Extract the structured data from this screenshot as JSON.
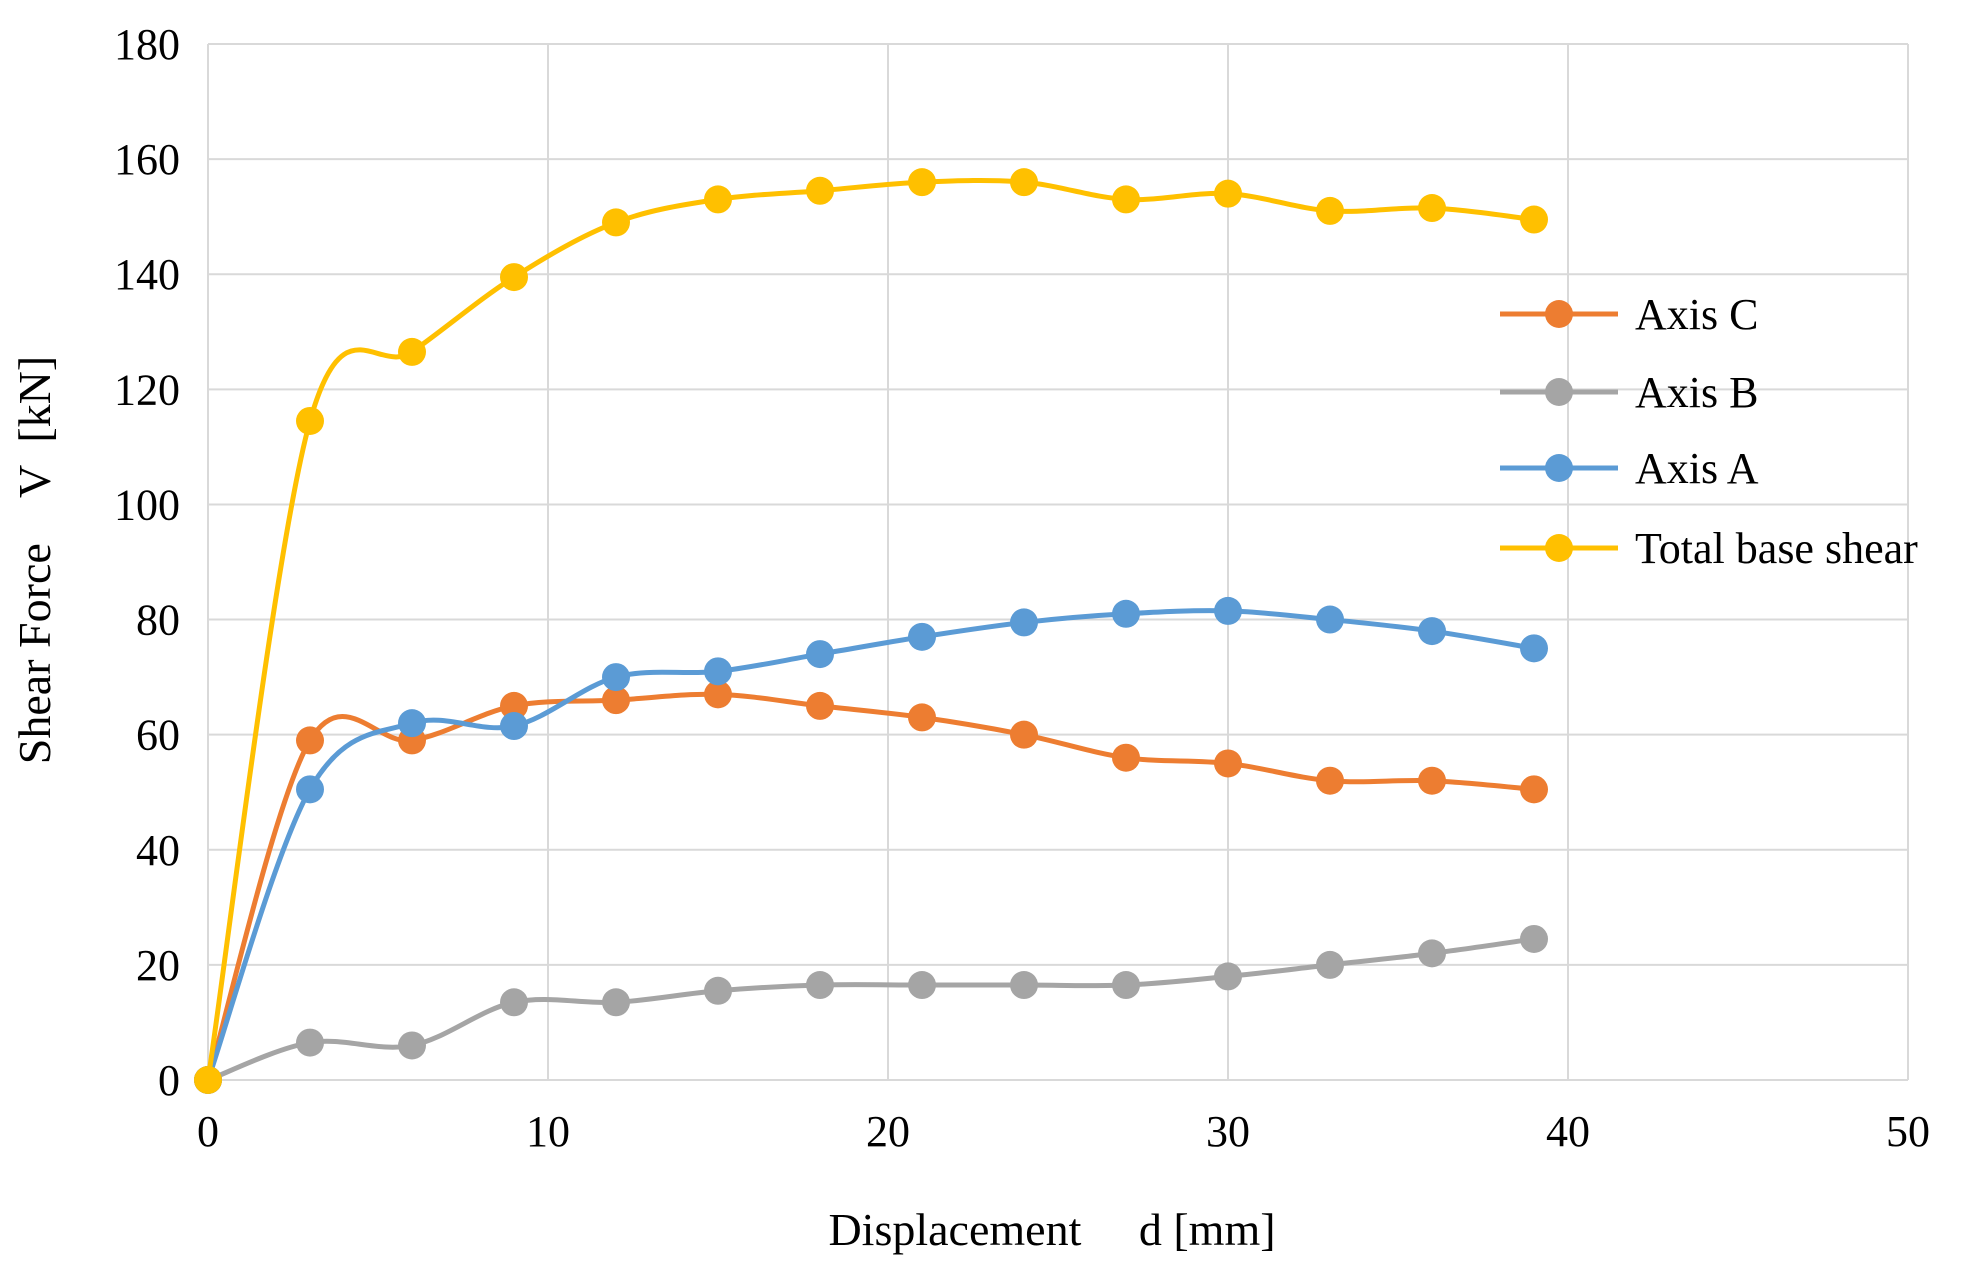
{
  "chart_data": {
    "type": "line",
    "title": "",
    "xlabel": "Displacement     d [mm]",
    "ylabel": "Shear Force    V  [kN]",
    "xlim": [
      0,
      50
    ],
    "ylim": [
      0,
      180
    ],
    "xticks": [
      0,
      10,
      20,
      30,
      40,
      50
    ],
    "yticks": [
      0,
      20,
      40,
      60,
      80,
      100,
      120,
      140,
      160,
      180
    ],
    "grid": true,
    "legend_position": "right",
    "x": [
      0,
      3,
      6,
      9,
      12,
      15,
      18,
      21,
      24,
      27,
      30,
      33,
      36,
      39
    ],
    "series": [
      {
        "name": "Axis C",
        "color": "#ED7D31",
        "values": [
          0,
          59,
          59,
          65,
          66,
          67,
          65,
          63,
          60,
          56,
          55,
          52,
          52,
          50.5
        ]
      },
      {
        "name": "Axis B",
        "color": "#A5A5A5",
        "values": [
          0,
          6.5,
          6,
          13.5,
          13.5,
          15.5,
          16.5,
          16.5,
          16.5,
          16.5,
          18,
          20,
          22,
          24.5
        ]
      },
      {
        "name": "Axis A",
        "color": "#5B9BD5",
        "values": [
          0,
          50.5,
          62,
          61.5,
          70,
          71,
          74,
          77,
          79.5,
          81,
          81.5,
          80,
          78,
          75
        ]
      },
      {
        "name": "Total base shear",
        "color": "#FFC000",
        "values": [
          0,
          114.5,
          126.5,
          139.5,
          149,
          153,
          154.5,
          156,
          156,
          153,
          154,
          151,
          151.5,
          149.5
        ]
      }
    ]
  }
}
